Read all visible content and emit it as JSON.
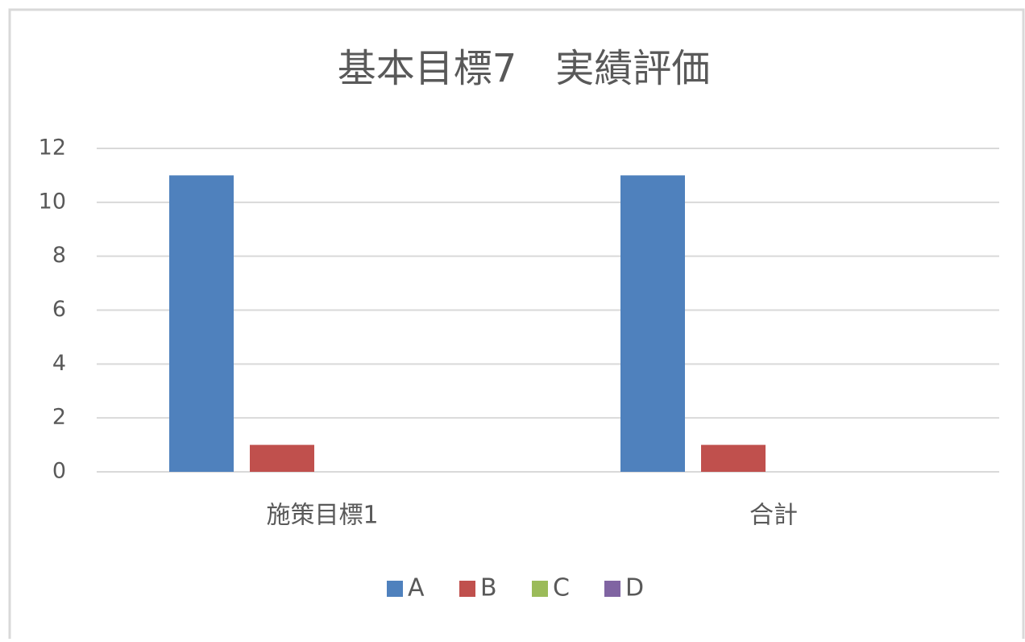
{
  "chart_data": {
    "type": "bar",
    "title": "基本目標7　実績評価",
    "categories": [
      "施策目標1",
      "合計"
    ],
    "series": [
      {
        "name": "A",
        "color": "#4f81bd",
        "values": [
          11,
          11
        ]
      },
      {
        "name": "B",
        "color": "#c0504d",
        "values": [
          1,
          1
        ]
      },
      {
        "name": "C",
        "color": "#9bbb59",
        "values": [
          0,
          0
        ]
      },
      {
        "name": "D",
        "color": "#8064a2",
        "values": [
          0,
          0
        ]
      }
    ],
    "ylim": [
      0,
      12
    ],
    "yticks": [
      0,
      2,
      4,
      6,
      8,
      10,
      12
    ],
    "grid": true,
    "legend": "bottom"
  }
}
